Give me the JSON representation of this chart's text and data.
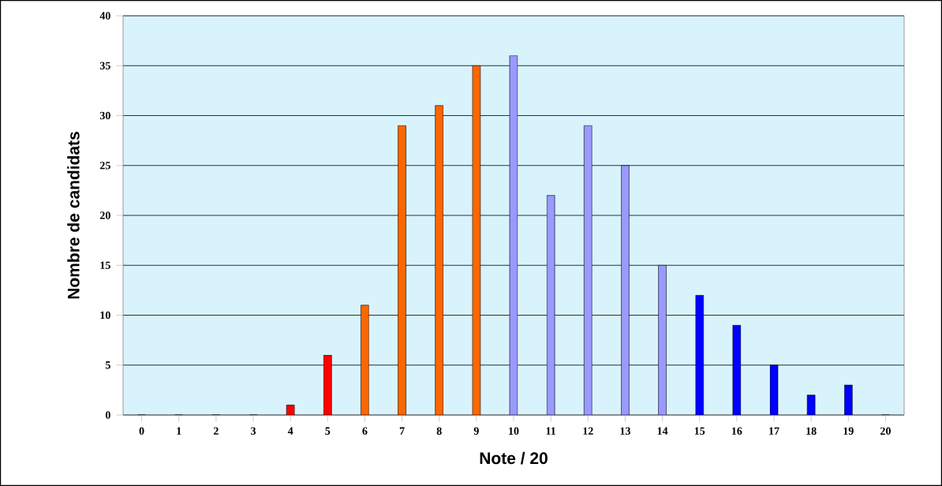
{
  "chart_data": {
    "type": "bar",
    "xlabel": "Note / 20",
    "ylabel": "Nombre de candidats",
    "categories": [
      "0",
      "1",
      "2",
      "3",
      "4",
      "5",
      "6",
      "7",
      "8",
      "9",
      "10",
      "11",
      "12",
      "13",
      "14",
      "15",
      "16",
      "17",
      "18",
      "19",
      "20"
    ],
    "values": [
      0,
      0,
      0,
      0,
      1,
      6,
      11,
      29,
      31,
      35,
      36,
      22,
      29,
      25,
      15,
      12,
      9,
      5,
      2,
      3,
      0
    ],
    "colors": [
      "#ff0000",
      "#ff0000",
      "#ff0000",
      "#ff0000",
      "#ff0000",
      "#ff0000",
      "#ff6600",
      "#ff6600",
      "#ff6600",
      "#ff6600",
      "#9999ff",
      "#9999ff",
      "#9999ff",
      "#9999ff",
      "#9999ff",
      "#0000ff",
      "#0000ff",
      "#0000ff",
      "#0000ff",
      "#0000ff",
      "#0000ff"
    ],
    "ylim": [
      0,
      40
    ],
    "yticks": [
      0,
      5,
      10,
      15,
      20,
      25,
      30,
      35,
      40
    ],
    "grid": "y"
  }
}
